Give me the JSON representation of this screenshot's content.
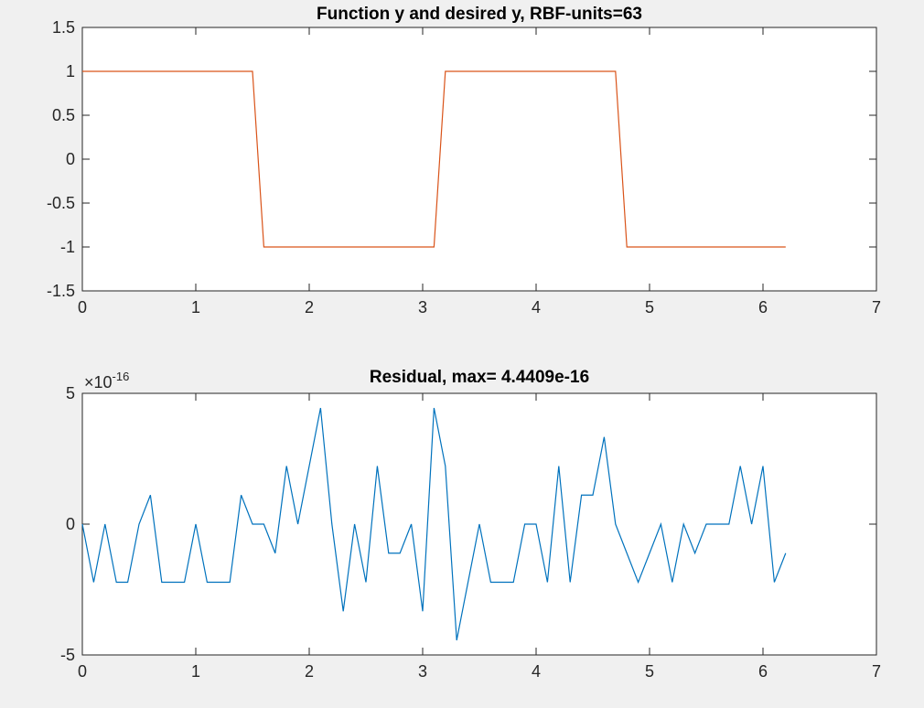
{
  "chart_data": [
    {
      "type": "line",
      "title": "Function y and desired y, RBF-units=63",
      "xlim": [
        0,
        7
      ],
      "ylim": [
        -1.5,
        1.5
      ],
      "xticks": [
        "0",
        "1",
        "2",
        "3",
        "4",
        "5",
        "6",
        "7"
      ],
      "yticks": [
        "1.5",
        "1",
        "0.5",
        "0",
        "-0.5",
        "-1",
        "-1.5"
      ],
      "series_color": "#d95319",
      "series": [
        {
          "x": [
            0,
            0.1,
            0.2,
            0.3,
            0.4,
            0.5,
            0.6,
            0.7,
            0.8,
            0.9,
            1.0,
            1.1,
            1.2,
            1.3,
            1.4,
            1.5,
            1.6,
            1.7,
            1.8,
            1.9,
            2.0,
            2.1,
            2.2,
            2.3,
            2.4,
            2.5,
            2.6,
            2.7,
            2.8,
            2.9,
            3.0,
            3.1,
            3.2,
            3.3,
            3.4,
            3.5,
            3.6,
            3.7,
            3.8,
            3.9,
            4.0,
            4.1,
            4.2,
            4.3,
            4.4,
            4.5,
            4.6,
            4.7,
            4.8,
            4.9,
            5.0,
            5.1,
            5.2,
            5.3,
            5.4,
            5.5,
            5.6,
            5.7,
            5.8,
            5.9,
            6.0,
            6.1,
            6.2
          ],
          "y": [
            1,
            1,
            1,
            1,
            1,
            1,
            1,
            1,
            1,
            1,
            1,
            1,
            1,
            1,
            1,
            1,
            -1,
            -1,
            -1,
            -1,
            -1,
            -1,
            -1,
            -1,
            -1,
            -1,
            -1,
            -1,
            -1,
            -1,
            -1,
            -1,
            1,
            1,
            1,
            1,
            1,
            1,
            1,
            1,
            1,
            1,
            1,
            1,
            1,
            1,
            1,
            1,
            -1,
            -1,
            -1,
            -1,
            -1,
            -1,
            -1,
            -1,
            -1,
            -1,
            -1,
            -1,
            -1,
            -1,
            -1
          ]
        }
      ]
    },
    {
      "type": "line",
      "title": "Residual, max= 4.4409e-16",
      "xlim": [
        0,
        7
      ],
      "ylim": [
        -5,
        5
      ],
      "exponent_label": "×10",
      "exponent_power": "-16",
      "xticks": [
        "0",
        "1",
        "2",
        "3",
        "4",
        "5",
        "6",
        "7"
      ],
      "yticks": [
        "5",
        "0",
        "-5"
      ],
      "series_color": "#0072bd",
      "series": [
        {
          "x": [
            0,
            0.1,
            0.2,
            0.3,
            0.4,
            0.5,
            0.6,
            0.7,
            0.8,
            0.9,
            1.0,
            1.1,
            1.2,
            1.3,
            1.4,
            1.5,
            1.6,
            1.7,
            1.8,
            1.9,
            2.0,
            2.1,
            2.2,
            2.3,
            2.4,
            2.5,
            2.6,
            2.7,
            2.8,
            2.9,
            3.0,
            3.1,
            3.2,
            3.3,
            3.4,
            3.5,
            3.6,
            3.7,
            3.8,
            3.9,
            4.0,
            4.1,
            4.2,
            4.3,
            4.4,
            4.5,
            4.6,
            4.7,
            4.8,
            4.9,
            5.0,
            5.1,
            5.2,
            5.3,
            5.4,
            5.5,
            5.6,
            5.7,
            5.8,
            5.9,
            6.0,
            6.1,
            6.2
          ],
          "y": [
            0,
            -2.22,
            0,
            -2.22,
            -2.22,
            0,
            1.11,
            -2.22,
            -2.22,
            -2.22,
            0,
            -2.22,
            -2.22,
            -2.22,
            1.11,
            0,
            0,
            -1.11,
            2.22,
            0,
            2.22,
            4.44,
            0,
            -3.33,
            0,
            -2.22,
            2.22,
            -1.11,
            -1.11,
            0,
            -3.33,
            4.44,
            2.22,
            -4.44,
            -2.22,
            0,
            -2.22,
            -2.22,
            -2.22,
            0,
            0,
            -2.22,
            2.22,
            -2.22,
            1.11,
            1.11,
            3.33,
            0,
            -1.11,
            -2.22,
            -1.11,
            0,
            -2.22,
            0,
            -1.11,
            0,
            0,
            0,
            2.22,
            0,
            2.22,
            -2.22,
            -1.11
          ]
        }
      ]
    }
  ]
}
